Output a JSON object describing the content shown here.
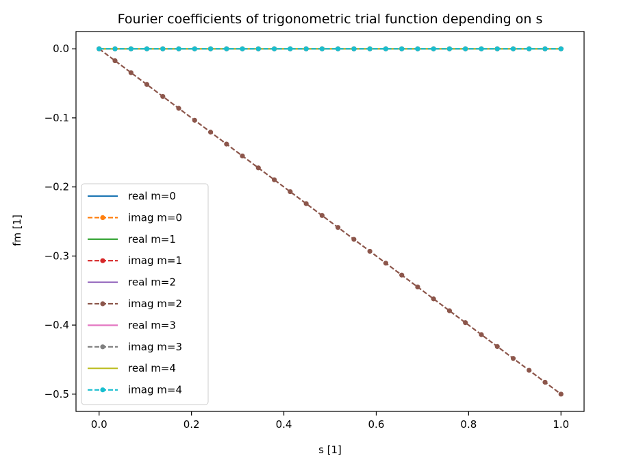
{
  "chart_data": {
    "type": "line",
    "title": "Fourier coefficients of trigonometric trial function depending on s",
    "xlabel": "s [1]",
    "ylabel": "fm [1]",
    "xlim": [
      -0.05,
      1.05
    ],
    "ylim": [
      -0.525,
      0.025
    ],
    "xticks": [
      0.0,
      0.2,
      0.4,
      0.6,
      0.8,
      1.0
    ],
    "xtick_labels": [
      "0.0",
      "0.2",
      "0.4",
      "0.6",
      "0.8",
      "1.0"
    ],
    "yticks": [
      0.0,
      -0.1,
      -0.2,
      -0.3,
      -0.4,
      -0.5
    ],
    "ytick_labels": [
      "0.0",
      "−0.1",
      "−0.2",
      "−0.3",
      "−0.4",
      "−0.5"
    ],
    "grid": false,
    "legend_position": "lower-left",
    "s_values": [
      0.0,
      0.0345,
      0.069,
      0.1034,
      0.1379,
      0.1724,
      0.2069,
      0.2414,
      0.2759,
      0.3103,
      0.3448,
      0.3793,
      0.4138,
      0.4483,
      0.4828,
      0.5172,
      0.5517,
      0.5862,
      0.6207,
      0.6552,
      0.6897,
      0.7241,
      0.7586,
      0.7931,
      0.8276,
      0.8621,
      0.8966,
      0.931,
      0.9655,
      1.0
    ],
    "series": [
      {
        "name": "real m=0",
        "color": "#1f77b4",
        "style": "solid",
        "marker": false,
        "slope": 0.0
      },
      {
        "name": "imag m=0",
        "color": "#ff7f0e",
        "style": "dashed",
        "marker": true,
        "slope": 0.0
      },
      {
        "name": "real m=1",
        "color": "#2ca02c",
        "style": "solid",
        "marker": false,
        "slope": 0.0
      },
      {
        "name": "imag m=1",
        "color": "#d62728",
        "style": "dashed",
        "marker": true,
        "slope": 0.0
      },
      {
        "name": "real m=2",
        "color": "#9467bd",
        "style": "solid",
        "marker": false,
        "slope": 0.0
      },
      {
        "name": "imag m=2",
        "color": "#8c564b",
        "style": "dashed",
        "marker": true,
        "slope": -0.5
      },
      {
        "name": "real m=3",
        "color": "#e377c2",
        "style": "solid",
        "marker": false,
        "slope": 0.0
      },
      {
        "name": "imag m=3",
        "color": "#7f7f7f",
        "style": "dashed",
        "marker": true,
        "slope": 0.0
      },
      {
        "name": "real m=4",
        "color": "#bcbd22",
        "style": "solid",
        "marker": false,
        "slope": 0.0
      },
      {
        "name": "imag m=4",
        "color": "#17becf",
        "style": "dashed",
        "marker": true,
        "slope": 0.0
      }
    ]
  }
}
